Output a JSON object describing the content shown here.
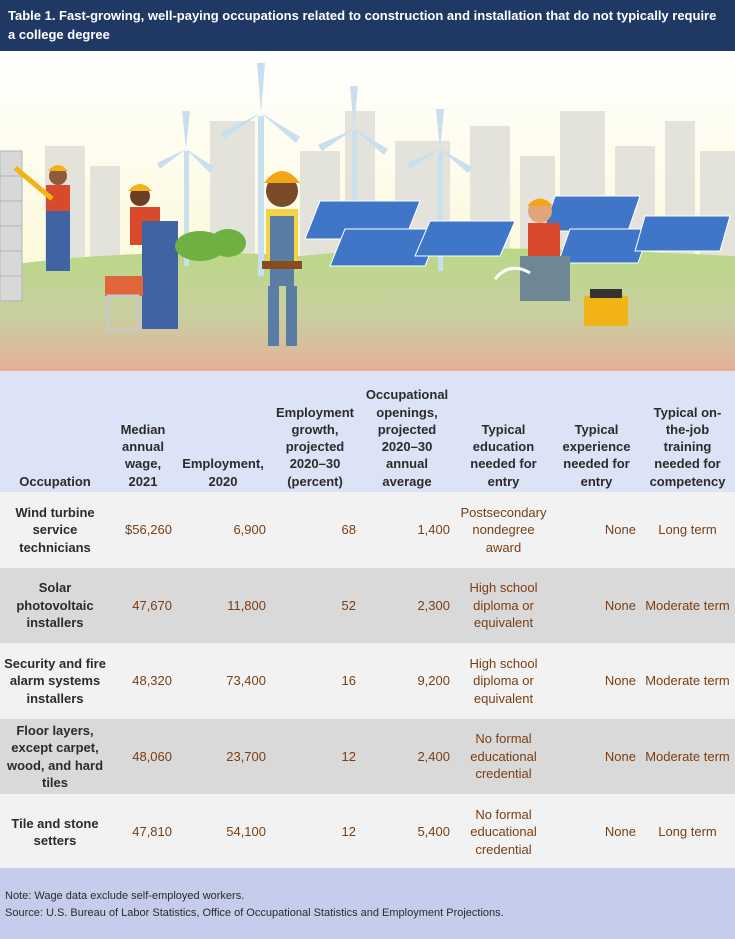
{
  "title": "Table 1. Fast-growing, well-paying occupations related to construction and installation that do not typically require a college degree",
  "headers": [
    "Occupation",
    "Median annual wage, 2021",
    "Employment, 2020",
    "Employment growth, projected 2020–30 (percent)",
    "Occupational openings, projected 2020–30 annual average",
    "Typical education needed for entry",
    "Typical experience needed for entry",
    "Typical on-the-job training needed for competency"
  ],
  "rows": [
    {
      "occupation": "Wind turbine service technicians",
      "wage": "$56,260",
      "employment": "6,900",
      "growth": "68",
      "openings": "1,400",
      "education": "Postsecondary nondegree award",
      "experience": "None",
      "training": "Long term"
    },
    {
      "occupation": "Solar photovoltaic installers",
      "wage": "47,670",
      "employment": "11,800",
      "growth": "52",
      "openings": "2,300",
      "education": "High school diploma or equivalent",
      "experience": "None",
      "training": "Moderate term"
    },
    {
      "occupation": "Security and fire alarm systems installers",
      "wage": "48,320",
      "employment": "73,400",
      "growth": "16",
      "openings": "9,200",
      "education": "High school diploma or equivalent",
      "experience": "None",
      "training": "Moderate term"
    },
    {
      "occupation": "Floor layers, except carpet, wood, and hard tiles",
      "wage": "48,060",
      "employment": "23,700",
      "growth": "12",
      "openings": "2,400",
      "education": "No formal educational credential",
      "experience": "None",
      "training": "Moderate term"
    },
    {
      "occupation": "Tile and stone setters",
      "wage": "47,810",
      "employment": "54,100",
      "growth": "12",
      "openings": "5,400",
      "education": "No formal educational credential",
      "experience": "None",
      "training": "Long term"
    }
  ],
  "notes": {
    "note": "Note: Wage data exclude self-employed workers.",
    "source": "Source: U.S. Bureau of Labor Statistics, Office of Occupational Statistics and Employment Projections."
  },
  "colors": {
    "title_bg": "#1f3864",
    "header_bg": "#dde3f6",
    "row_light": "#f2f2f2",
    "row_dark": "#d9d9d9",
    "note_bg": "#c5ccec",
    "value_text": "#7a3e12"
  }
}
